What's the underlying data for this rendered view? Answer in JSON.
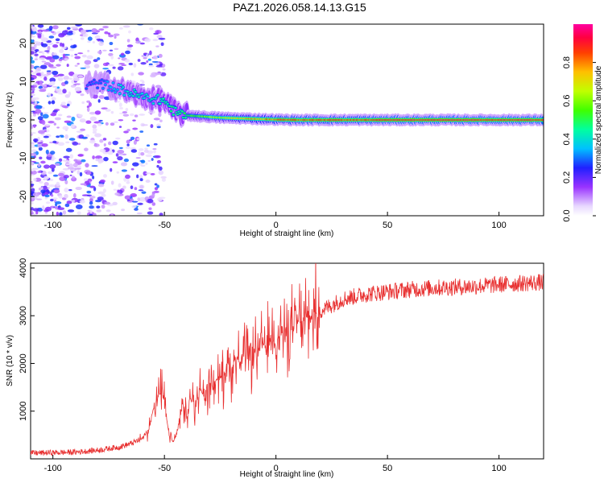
{
  "title": "PAZ1.2026.058.14.13.G15",
  "chart_data": [
    {
      "type": "heatmap",
      "name": "spectrogram",
      "xlabel": "Height of straight line (km)",
      "ylabel": "Frequency (Hz)",
      "xlim": [
        -110,
        120
      ],
      "ylim": [
        -25,
        25
      ],
      "xticks": [
        -100,
        -50,
        0,
        50,
        100
      ],
      "yticks": [
        -20,
        -10,
        0,
        10,
        20
      ],
      "ridge": {
        "x": [
          -85,
          -80,
          -75,
          -70,
          -65,
          -60,
          -55,
          -50,
          -47,
          -45,
          -42,
          -40,
          -35,
          -30,
          -25,
          -20,
          -15,
          -10,
          -5,
          0,
          10,
          20,
          30,
          40,
          50,
          60,
          70,
          80,
          90,
          100,
          110,
          120
        ],
        "freq": [
          9,
          9.5,
          9,
          8,
          7,
          6,
          5.5,
          5,
          3,
          2,
          1.5,
          1.2,
          1,
          0.8,
          0.6,
          0.5,
          0.4,
          0.3,
          0.2,
          0.1,
          0,
          0,
          0,
          0,
          0,
          0,
          0,
          0,
          0,
          0,
          0,
          0
        ],
        "amplitude": [
          0.3,
          0.3,
          0.35,
          0.4,
          0.45,
          0.45,
          0.45,
          0.5,
          0.5,
          0.5,
          0.5,
          0.55,
          0.6,
          0.65,
          0.7,
          0.75,
          0.8,
          0.85,
          0.85,
          0.9,
          0.95,
          0.95,
          0.95,
          0.95,
          1.0,
          1.0,
          1.0,
          1.0,
          1.0,
          1.0,
          1.0,
          1.0
        ]
      },
      "colorbar": {
        "label": "Normalized spectral amplitude",
        "range": [
          0,
          1
        ],
        "ticks": [
          0.0,
          0.2,
          0.4,
          0.6,
          0.8
        ]
      }
    },
    {
      "type": "line",
      "name": "snr",
      "xlabel": "Height of straight line (km)",
      "ylabel": "SNR (10 * v/v)",
      "xlim": [
        -110,
        120
      ],
      "ylim": [
        0,
        4100
      ],
      "xticks": [
        -100,
        -50,
        0,
        50,
        100
      ],
      "yticks": [
        1000,
        2000,
        3000,
        4000
      ],
      "color": "#e83030",
      "series": [
        {
          "name": "SNR",
          "x": [
            -110,
            -100,
            -90,
            -80,
            -70,
            -65,
            -60,
            -57,
            -55,
            -53,
            -51,
            -50,
            -48,
            -46,
            -44,
            -42,
            -40,
            -38,
            -36,
            -34,
            -32,
            -30,
            -28,
            -26,
            -24,
            -22,
            -20,
            -18,
            -16,
            -14,
            -12,
            -10,
            -8,
            -6,
            -4,
            -2,
            0,
            2,
            4,
            6,
            8,
            10,
            12,
            14,
            16,
            18,
            20,
            22,
            24,
            26,
            28,
            30,
            35,
            40,
            45,
            50,
            60,
            70,
            80,
            90,
            100,
            110,
            120
          ],
          "values": [
            120,
            130,
            140,
            180,
            250,
            320,
            420,
            600,
            1050,
            1300,
            1400,
            1200,
            500,
            350,
            600,
            1150,
            850,
            1350,
            1050,
            1500,
            1250,
            1600,
            1500,
            1750,
            1650,
            2050,
            1850,
            2150,
            2000,
            2200,
            2050,
            2300,
            2150,
            2450,
            2300,
            2600,
            2400,
            2700,
            2550,
            2800,
            2700,
            2900,
            2850,
            2950,
            3000,
            3050,
            3100,
            3150,
            3200,
            3250,
            3300,
            3350,
            3400,
            3450,
            3480,
            3500,
            3550,
            3580,
            3600,
            3620,
            3650,
            3680,
            3700
          ]
        }
      ]
    }
  ]
}
